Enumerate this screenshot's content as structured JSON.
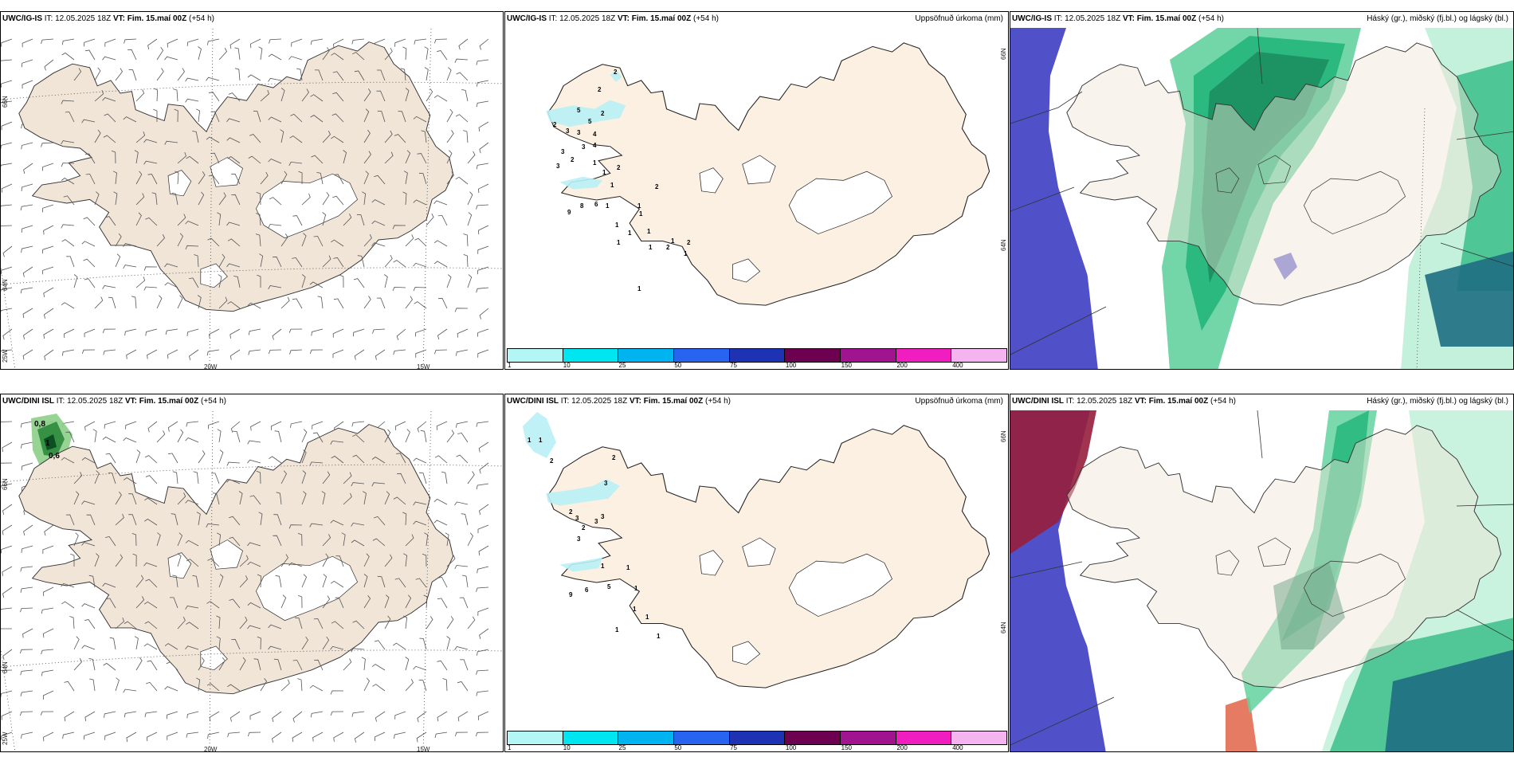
{
  "rows": [
    {
      "model": "UWC/IG-IS",
      "it_label": "IT:",
      "it_value": "12.05.2025 18Z",
      "vt_label": "VT: Fim. 15.maí 00Z",
      "lead": "(+54 h)"
    },
    {
      "model": "UWC/DINI ISL",
      "it_label": "IT:",
      "it_value": "12.05.2025 18Z",
      "vt_label": "VT: Fim. 15.maí 00Z",
      "lead": "(+54 h)"
    }
  ],
  "precip_title": "Uppsöfnuð úrkoma (mm)",
  "cloud_title": "Háský (gr.), miðský (fj.bl.) og lágský (bl.)",
  "grid_labels": {
    "lat66": "66N",
    "lat64": "64N",
    "lon25": "25W",
    "lon20": "20W",
    "lon15": "15W"
  },
  "legend": {
    "ticks": [
      "1",
      "10",
      "25",
      "50",
      "75",
      "100",
      "150",
      "200",
      "400"
    ],
    "colors": [
      "#b4f5f5",
      "#00e6f0",
      "#00b4f0",
      "#2864f0",
      "#1e32b4",
      "#6e0050",
      "#a01490",
      "#f01ebe",
      "#f5b4f0"
    ]
  },
  "colors": {
    "land_wind": "#f1e5d8",
    "land_precip": "#fcf0e2",
    "precip_fill": "#b8f0f5",
    "cloud_high": "#5050c8",
    "cloud_mid_dark": "#147850",
    "cloud_mid": "#1eb478",
    "cloud_low": "#64d2a0",
    "cloud_lowest": "#b4eed2",
    "cloud_red": "#961e3c",
    "cloud_teal_dark": "#1e6e82"
  },
  "map_data": {
    "top_wind_values": [],
    "top_precip_labels": [
      "2",
      "2",
      "5",
      "2",
      "5",
      "2",
      "3",
      "3",
      "4",
      "3",
      "3",
      "2",
      "3",
      "4",
      "1",
      "1",
      "2",
      "1",
      "9",
      "8",
      "6",
      "1",
      "1",
      "1",
      "1",
      "2",
      "1",
      "1",
      "2",
      "1",
      "2",
      "1",
      "1",
      "1",
      "1"
    ],
    "bottom_wind_values": [
      "0,8",
      "1",
      "0,6"
    ],
    "bottom_precip_labels": [
      "1",
      "1",
      "2",
      "2",
      "3",
      "2",
      "3",
      "2",
      "3",
      "3",
      "3",
      "1",
      "1",
      "9",
      "6",
      "5",
      "1",
      "1",
      "1",
      "1",
      "1"
    ]
  }
}
